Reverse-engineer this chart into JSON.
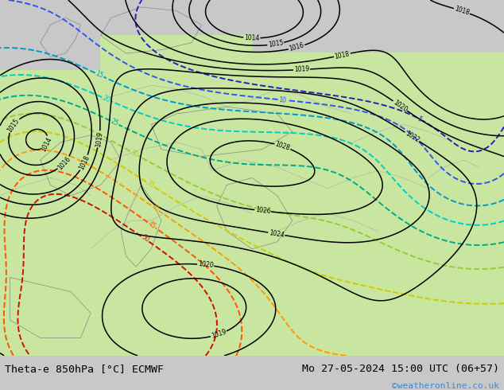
{
  "title_left": "Theta-e 850hPa [°C] ECMWF",
  "title_right": "Mo 27-05-2024 15:00 UTC (06+57)",
  "credit": "©weatheronline.co.uk",
  "fig_width": 6.34,
  "fig_height": 4.9,
  "dpi": 100,
  "bg_color": "#c8c8c8",
  "land_green": "#c8e6a0",
  "bottom_bar_color": "#e0e0e0",
  "label_color": "#000000",
  "credit_color": "#4488cc",
  "pressure_color": "#000000",
  "theta_levels": [
    5,
    10,
    15,
    20,
    25,
    30,
    35,
    40,
    45,
    50
  ],
  "theta_colors": [
    "#2222bb",
    "#3355ee",
    "#0099cc",
    "#00cccc",
    "#00aa88",
    "#99cc33",
    "#cccc00",
    "#ff9900",
    "#ff5500",
    "#cc1100"
  ]
}
